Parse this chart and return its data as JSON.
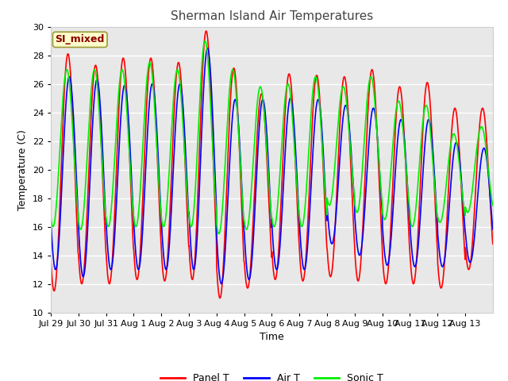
{
  "title": "Sherman Island Air Temperatures",
  "xlabel": "Time",
  "ylabel": "Temperature (C)",
  "ylim": [
    10,
    30
  ],
  "figure_bg_color": "#ffffff",
  "plot_bg_color": "#e8e8e8",
  "grid_color": "white",
  "annotation_text": "SI_mixed",
  "annotation_color": "#8b0000",
  "annotation_bg": "#ffffcc",
  "annotation_border": "#999933",
  "tick_labels": [
    "Jul 29",
    "Jul 30",
    "Jul 31",
    "Aug 1",
    "Aug 2",
    "Aug 3",
    "Aug 4",
    "Aug 5",
    "Aug 6",
    "Aug 7",
    "Aug 8",
    "Aug 9",
    "Aug 10",
    "Aug 11",
    "Aug 12",
    "Aug 13"
  ],
  "line_colors": [
    "red",
    "blue",
    "#00ee00"
  ],
  "line_labels": [
    "Panel T",
    "Air T",
    "Sonic T"
  ],
  "line_width": 1.2,
  "n_days": 16,
  "samples_per_day": 96,
  "daily_max_panel": [
    28.1,
    27.3,
    27.8,
    27.8,
    27.5,
    29.7,
    27.1,
    25.3,
    26.7,
    26.6,
    26.5,
    27.0,
    25.8,
    26.1,
    24.3,
    24.3
  ],
  "daily_min_panel": [
    11.5,
    12.0,
    12.0,
    12.3,
    12.2,
    12.3,
    11.0,
    11.7,
    12.3,
    12.2,
    12.5,
    12.2,
    12.0,
    12.0,
    11.7,
    13.0
  ],
  "daily_max_air": [
    26.5,
    26.3,
    25.9,
    26.0,
    26.0,
    28.5,
    24.9,
    24.9,
    25.0,
    24.9,
    24.5,
    24.3,
    23.5,
    23.5,
    21.9,
    21.5
  ],
  "daily_min_air": [
    13.0,
    12.5,
    13.0,
    13.0,
    13.0,
    13.0,
    12.0,
    12.3,
    13.0,
    13.0,
    14.8,
    14.0,
    13.3,
    13.2,
    13.2,
    13.5
  ],
  "daily_max_sonic": [
    27.0,
    27.0,
    27.0,
    27.5,
    27.0,
    29.0,
    27.0,
    25.8,
    26.0,
    26.5,
    25.8,
    26.5,
    24.8,
    24.5,
    22.5,
    23.0
  ],
  "daily_min_sonic": [
    16.0,
    15.8,
    16.0,
    16.0,
    16.0,
    16.0,
    15.5,
    15.8,
    16.0,
    16.0,
    17.5,
    17.0,
    16.5,
    16.0,
    16.3,
    17.0
  ],
  "panel_peak_phase": 0.62,
  "air_peak_phase": 0.67,
  "sonic_peak_phase": 0.58
}
